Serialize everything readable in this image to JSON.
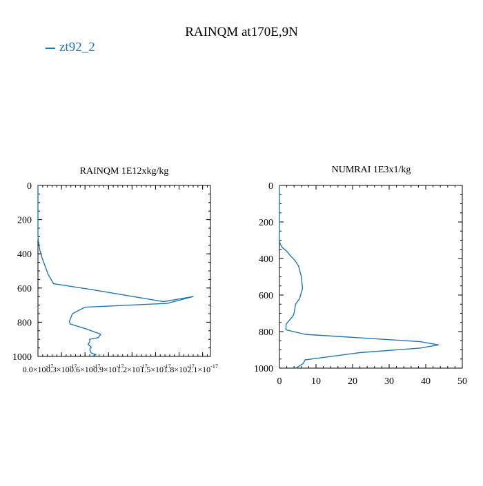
{
  "figure": {
    "title": "RAINQM at170E,9N",
    "legend": [
      {
        "label": "zt92_2",
        "color": "#1f77b4"
      }
    ]
  },
  "chart_data": [
    {
      "type": "line",
      "title": "RAINQM  1E12xkg/kg",
      "xlabel": "",
      "ylabel": "",
      "xlim": [
        0,
        2.2e-17
      ],
      "ylim": [
        1000,
        0
      ],
      "x_ticks": [
        0,
        3e-18,
        6e-18,
        9e-18,
        1.2e-17,
        1.5e-17,
        1.8e-17,
        2.1e-17
      ],
      "x_tick_labels": [
        "0.0×10",
        "0.3×10",
        "0.6×10",
        "0.9×10",
        "1.2×10",
        "1.5×10",
        "1.8×10",
        "2.1×10"
      ],
      "x_tick_exponents": [
        "-17",
        "-17",
        "-17",
        "-17",
        "-17",
        "-17",
        "-17",
        "-17"
      ],
      "y_ticks": [
        0,
        200,
        400,
        600,
        800,
        1000
      ],
      "y_tick_labels": [
        "0",
        "200",
        "400",
        "600",
        "800",
        "1000"
      ],
      "series": [
        {
          "name": "zt92_2",
          "color": "#1f77b4",
          "x": [
            0,
            0,
            0,
            0,
            1e-19,
            2.5e-19,
            5e-19,
            9e-19,
            1.3e-18,
            2e-18,
            7e-18,
            1.6e-17,
            1.98e-17,
            1.65e-17,
            6e-18,
            4.4e-18,
            4e-18,
            4.1e-18,
            6.2e-18,
            8e-18,
            7.7e-18,
            6.6e-18,
            6.6e-18,
            6.4e-18,
            6.8e-18,
            6.6e-18,
            6.8e-18,
            7.4e-18,
            6.9e-18
          ],
          "y": [
            0,
            100,
            200,
            300,
            340,
            380,
            420,
            470,
            520,
            575,
            610,
            680,
            650,
            690,
            712,
            750,
            795,
            810,
            840,
            870,
            890,
            900,
            915,
            930,
            945,
            960,
            980,
            990,
            1000
          ]
        }
      ]
    },
    {
      "type": "line",
      "title": "NUMRAI  1E3x1/kg",
      "xlabel": "",
      "ylabel": "",
      "xlim": [
        0,
        50
      ],
      "ylim": [
        1000,
        0
      ],
      "x_ticks": [
        0,
        10,
        20,
        30,
        40,
        50
      ],
      "x_tick_labels": [
        "0",
        "10",
        "20",
        "30",
        "40",
        "50"
      ],
      "y_ticks": [
        0,
        200,
        400,
        600,
        800,
        1000
      ],
      "y_tick_labels": [
        "0",
        "200",
        "400",
        "600",
        "800",
        "1000"
      ],
      "series": [
        {
          "name": "zt92_2",
          "color": "#1f77b4",
          "x": [
            0,
            0,
            0,
            0,
            0.2,
            0.8,
            2,
            3,
            4.2,
            5.2,
            6,
            6.3,
            5.5,
            4.4,
            4,
            3.7,
            1.8,
            1.8,
            7,
            38.5,
            43.5,
            38.5,
            22,
            7,
            6.5,
            4.5
          ],
          "y": [
            0,
            100,
            200,
            300,
            320,
            340,
            360,
            385,
            410,
            440,
            500,
            565,
            620,
            650,
            700,
            715,
            760,
            790,
            815,
            855,
            873,
            890,
            915,
            955,
            975,
            1000
          ]
        }
      ]
    }
  ]
}
